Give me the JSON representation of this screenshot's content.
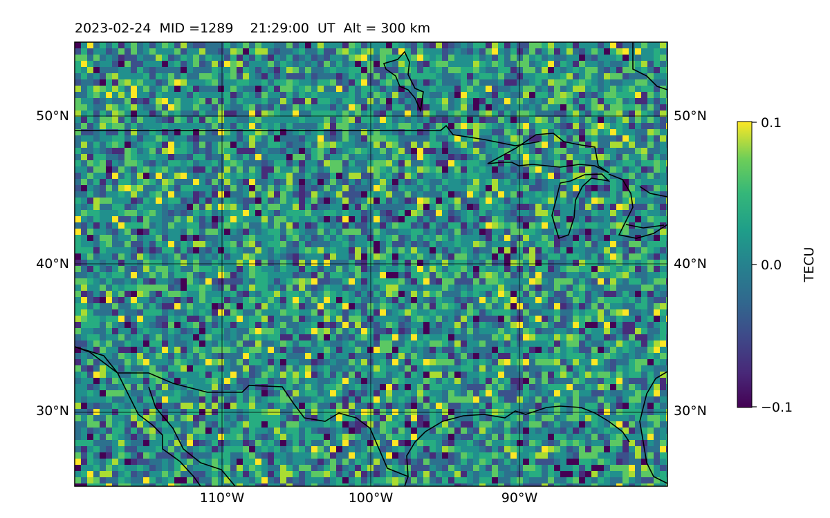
{
  "title": "2023-02-24  MID =1289    21:29:00  UT  Alt = 300 km",
  "map": {
    "lon_range": [
      -120,
      -80
    ],
    "lat_range": [
      25,
      55
    ],
    "lon_ticks": [
      {
        "value": -110,
        "label": "110°W"
      },
      {
        "value": -100,
        "label": "100°W"
      },
      {
        "value": -90,
        "label": "90°W"
      }
    ],
    "lat_ticks": [
      {
        "value": 30,
        "label": "30°N"
      },
      {
        "value": 40,
        "label": "40°N"
      },
      {
        "value": 50,
        "label": "50°N"
      }
    ],
    "gridlines": true,
    "coastlines": true,
    "field": "TEC perturbation (noisy, mostly near 0, isolated positive and negative patches)"
  },
  "colorbar": {
    "label": "TECU",
    "colormap": "viridis",
    "range": [
      -0.1,
      0.1
    ],
    "ticks": [
      {
        "value": 0.1,
        "label": "0.1"
      },
      {
        "value": 0.0,
        "label": "0.0"
      },
      {
        "value": -0.1,
        "label": "−0.1"
      }
    ]
  },
  "colors": {
    "background": "#21918c",
    "viridis_low": "#440154",
    "viridis_mid": "#21918c",
    "viridis_high": "#fde725"
  }
}
